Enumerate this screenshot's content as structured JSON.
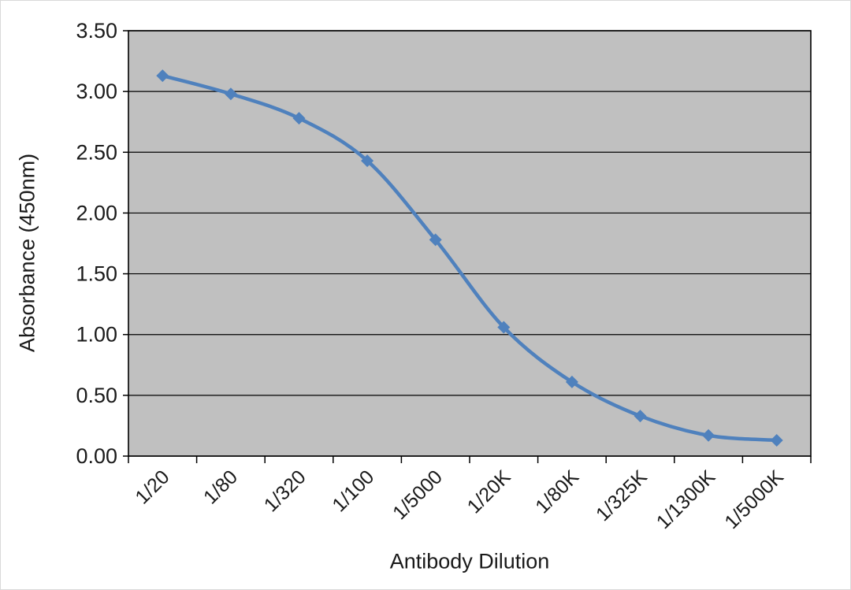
{
  "chart_data": {
    "type": "line",
    "title": "",
    "xlabel": "Antibody Dilution",
    "ylabel": "Absorbance (450nm)",
    "categories": [
      "1/20",
      "1/80",
      "1/320",
      "1/100",
      "1/5000",
      "1/20K",
      "1/80K",
      "1/325K",
      "1/1300K",
      "1/5000K"
    ],
    "series": [
      {
        "name": "Absorbance (450nm)",
        "values": [
          3.13,
          2.98,
          2.78,
          2.43,
          1.78,
          1.06,
          0.61,
          0.33,
          0.17,
          0.13
        ]
      }
    ],
    "ylim": [
      0,
      3.5
    ],
    "ytick_step": 0.5,
    "ytick_format_decimals": 2,
    "grid": true,
    "legend": "none",
    "x_label_rotation": -45,
    "colors": {
      "line": "#4f81bd",
      "marker": "#4f81bd",
      "plot_bg": "#c0c0c0",
      "grid": "#000000",
      "axis": "#000000",
      "text": "#1a1a1a",
      "page_bg": "#ffffff"
    }
  }
}
